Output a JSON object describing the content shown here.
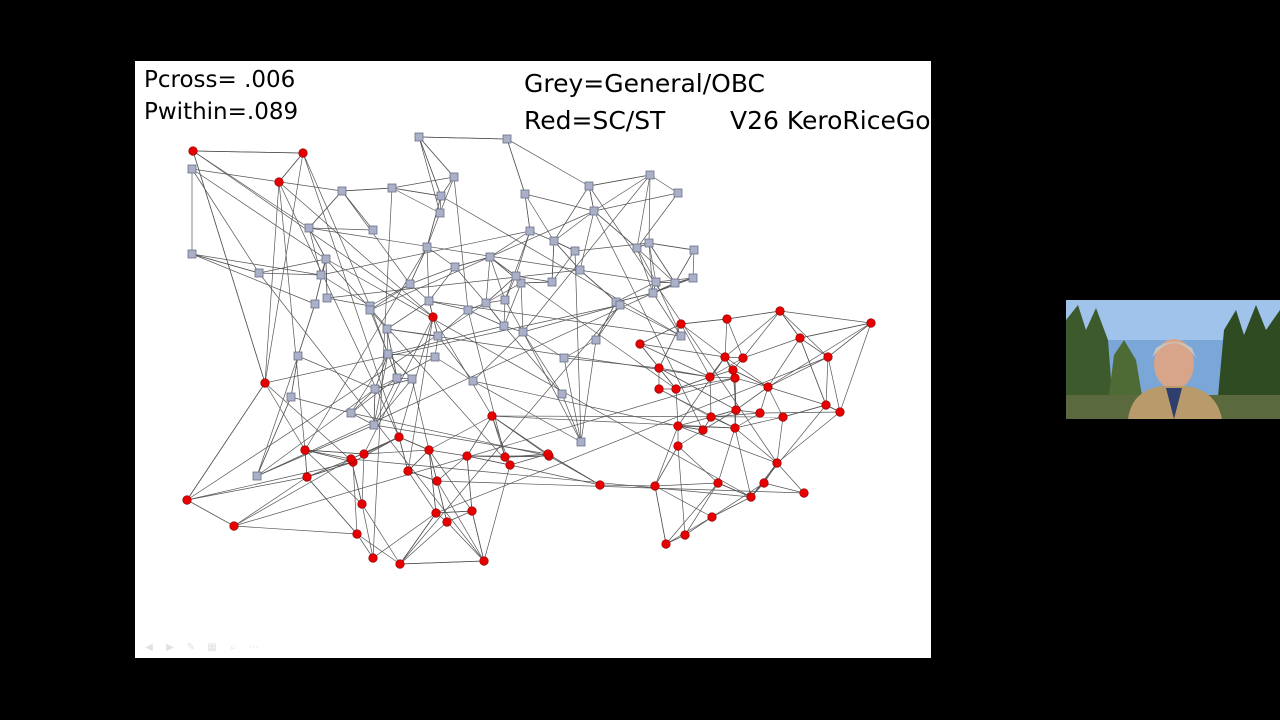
{
  "slide": {
    "pcross": "Pcross= .006",
    "pwithin": "Pwithin=.089",
    "legend_grey": "Grey=General/OBC",
    "legend_red": "Red=SC/ST",
    "version": "V26 KeroRiceGo"
  },
  "colors": {
    "background": "#000000",
    "slide": "#ffffff",
    "red_node": "#e60000",
    "grey_node": "#aab0c8",
    "edge": "#555555"
  },
  "toolbar": {
    "icons": [
      "prev-icon",
      "next-icon",
      "pen-icon",
      "slides-icon",
      "zoom-icon",
      "more-icon"
    ]
  },
  "webcam": {
    "icon": "presenter-video"
  }
}
